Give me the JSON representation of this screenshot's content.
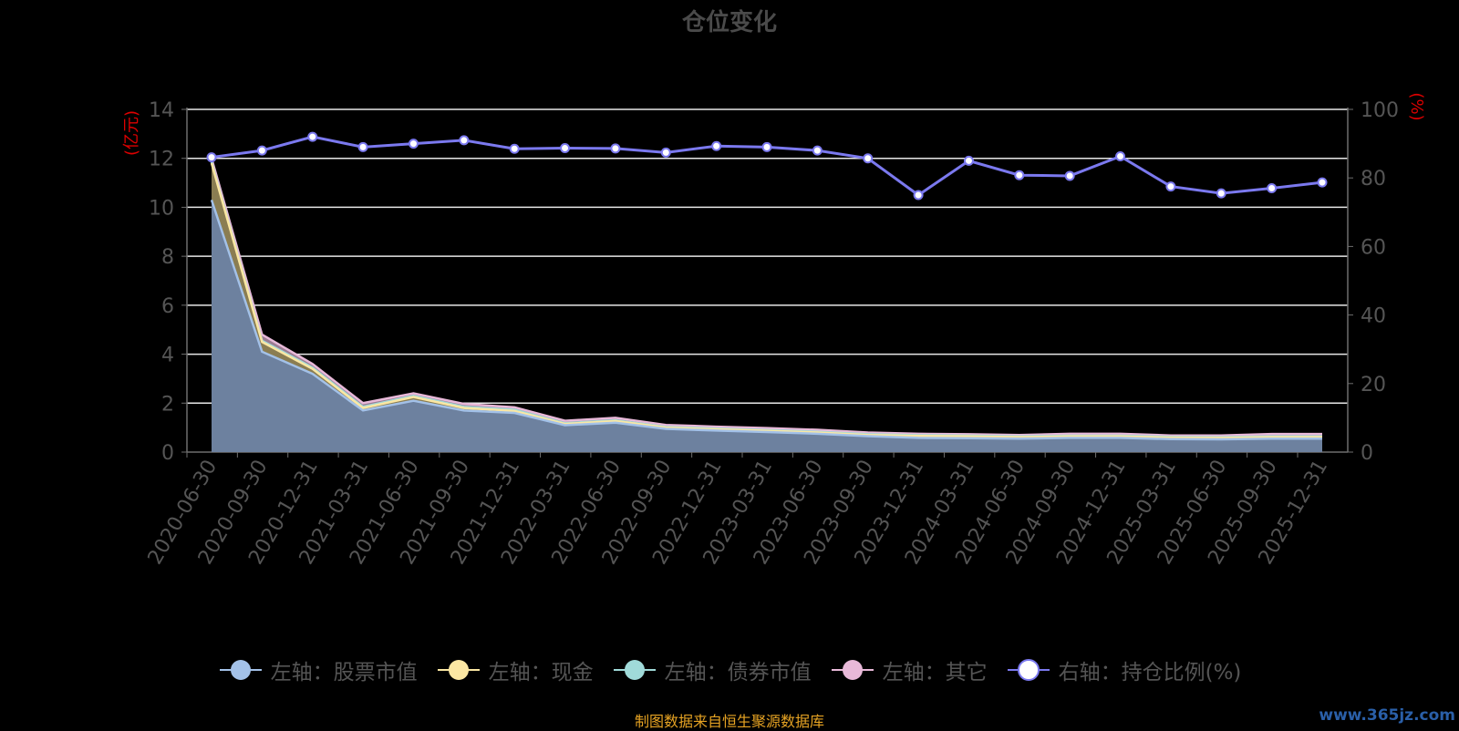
{
  "title": "仓位变化",
  "source": "制图数据来自恒生聚源数据库",
  "watermark": "www.365jz.com",
  "legend": [
    {
      "label": "左轴：股票市值",
      "color": "#a3c1e8"
    },
    {
      "label": "左轴：现金",
      "color": "#fbe7a3"
    },
    {
      "label": "左轴：债券市值",
      "color": "#a0dad9"
    },
    {
      "label": "左轴：其它",
      "color": "#e8b9d9"
    },
    {
      "label": "右轴：持仓比例(%)",
      "color": "#ffffff",
      "line_color": "#7b79ef"
    }
  ],
  "chart_data": {
    "type": "area",
    "title": "仓位变化",
    "y_left_label": "(亿元)",
    "y_right_label": "(%)",
    "y_left_range": [
      0,
      14
    ],
    "y_left_ticks": [
      0,
      2,
      4,
      6,
      8,
      10,
      12,
      14
    ],
    "y_right_range": [
      0,
      100
    ],
    "y_right_ticks": [
      0,
      20,
      40,
      60,
      80,
      100
    ],
    "grid": true,
    "legend_position": "bottom",
    "categories": [
      "2020-06-30",
      "2020-09-30",
      "2020-12-31",
      "2021-03-31",
      "2021-06-30",
      "2021-09-30",
      "2021-12-31",
      "2022-03-31",
      "2022-06-30",
      "2022-09-30",
      "2022-12-31",
      "2023-03-31",
      "2023-06-30",
      "2023-09-30",
      "2023-12-31",
      "2024-03-31",
      "2024-06-30",
      "2024-09-30",
      "2024-12-31",
      "2025-03-31",
      "2025-06-30",
      "2025-09-30",
      "2025-12-31"
    ],
    "series": [
      {
        "name": "左轴：股票市值",
        "axis": "left",
        "stack": true,
        "color": "#a3c1e8",
        "values": [
          10.3,
          4.1,
          3.2,
          1.7,
          2.1,
          1.7,
          1.6,
          1.1,
          1.2,
          0.95,
          0.88,
          0.82,
          0.75,
          0.65,
          0.58,
          0.57,
          0.55,
          0.58,
          0.58,
          0.53,
          0.52,
          0.55,
          0.55
        ]
      },
      {
        "name": "左轴：现金",
        "axis": "left",
        "stack": true,
        "color": "#fbe7a3",
        "values": [
          1.5,
          0.4,
          0.2,
          0.1,
          0.15,
          0.1,
          0.08,
          0.05,
          0.07,
          0.05,
          0.05,
          0.05,
          0.05,
          0.05,
          0.08,
          0.07,
          0.06,
          0.06,
          0.06,
          0.06,
          0.06,
          0.06,
          0.06
        ]
      },
      {
        "name": "左轴：债券市值",
        "axis": "left",
        "stack": true,
        "color": "#a0dad9",
        "values": [
          0.05,
          0.05,
          0.05,
          0.05,
          0.05,
          0.05,
          0.05,
          0.03,
          0.03,
          0.03,
          0.03,
          0.03,
          0.03,
          0.03,
          0.03,
          0.03,
          0.03,
          0.03,
          0.03,
          0.03,
          0.03,
          0.03,
          0.03
        ]
      },
      {
        "name": "左轴：其它",
        "axis": "left",
        "stack": true,
        "color": "#e8b9d9",
        "values": [
          0.15,
          0.25,
          0.15,
          0.15,
          0.1,
          0.12,
          0.1,
          0.1,
          0.1,
          0.08,
          0.08,
          0.08,
          0.08,
          0.07,
          0.06,
          0.06,
          0.06,
          0.08,
          0.08,
          0.06,
          0.07,
          0.1,
          0.1
        ]
      },
      {
        "name": "右轴：持仓比例(%)",
        "axis": "right",
        "type": "line",
        "color": "#7b79ef",
        "values": [
          86,
          88,
          92,
          89,
          90,
          91,
          88.5,
          88.7,
          88.6,
          87.4,
          89.3,
          89,
          88,
          85.7,
          75,
          85,
          80.8,
          80.6,
          86.3,
          77.5,
          75.5,
          77,
          78.7
        ]
      }
    ]
  }
}
